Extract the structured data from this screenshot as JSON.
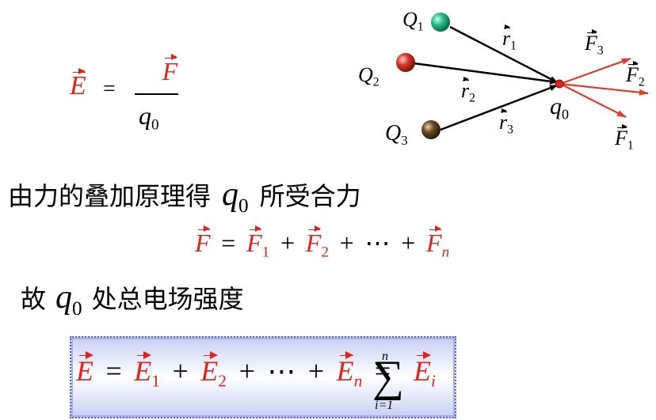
{
  "definition": {
    "E": "E",
    "eq": "=",
    "numerator": "F",
    "denominator": "q",
    "denominator_sub": "0"
  },
  "diagram": {
    "charges": [
      {
        "label": "Q",
        "sub": "1",
        "color": "#2bbf8a"
      },
      {
        "label": "Q",
        "sub": "2",
        "color": "#d63a2a"
      },
      {
        "label": "Q",
        "sub": "3",
        "color": "#5b3f21"
      }
    ],
    "r_vectors": [
      {
        "label": "r",
        "sub": "1"
      },
      {
        "label": "r",
        "sub": "2"
      },
      {
        "label": "r",
        "sub": "3"
      }
    ],
    "test_charge": {
      "label": "q",
      "sub": "0",
      "color": "#e0241b"
    },
    "force_vectors": [
      {
        "label": "F",
        "sub": "3"
      },
      {
        "label": "F",
        "sub": "2"
      },
      {
        "label": "F",
        "sub": "1"
      }
    ],
    "arrow_color": "#e03a2a"
  },
  "text1": {
    "before": "由力的叠加原理得",
    "var": "q",
    "var_sub": "0",
    "after": "所受合力"
  },
  "eq1": {
    "lhs": "F",
    "eq": "=",
    "t1": "F",
    "t1_sub": "1",
    "plus1": "+",
    "t2": "F",
    "t2_sub": "2",
    "plus2": "+",
    "dots": "⋯",
    "plus3": "+",
    "tn": "F",
    "tn_sub": "n"
  },
  "text2": {
    "before": "故",
    "var": "q",
    "var_sub": "0",
    "after": "处总电场强度"
  },
  "eq2": {
    "lhs": "E",
    "eq1": "=",
    "t1": "E",
    "t1_sub": "1",
    "plus1": "+",
    "t2": "E",
    "t2_sub": "2",
    "plus2": "+",
    "dots": "⋯",
    "plus3": "+",
    "tn": "E",
    "tn_sub": "n",
    "eq2": "=",
    "sigma": "∑",
    "sum_upper": "n",
    "sum_lower": "i=1",
    "ti": "E",
    "ti_sub": "i"
  }
}
